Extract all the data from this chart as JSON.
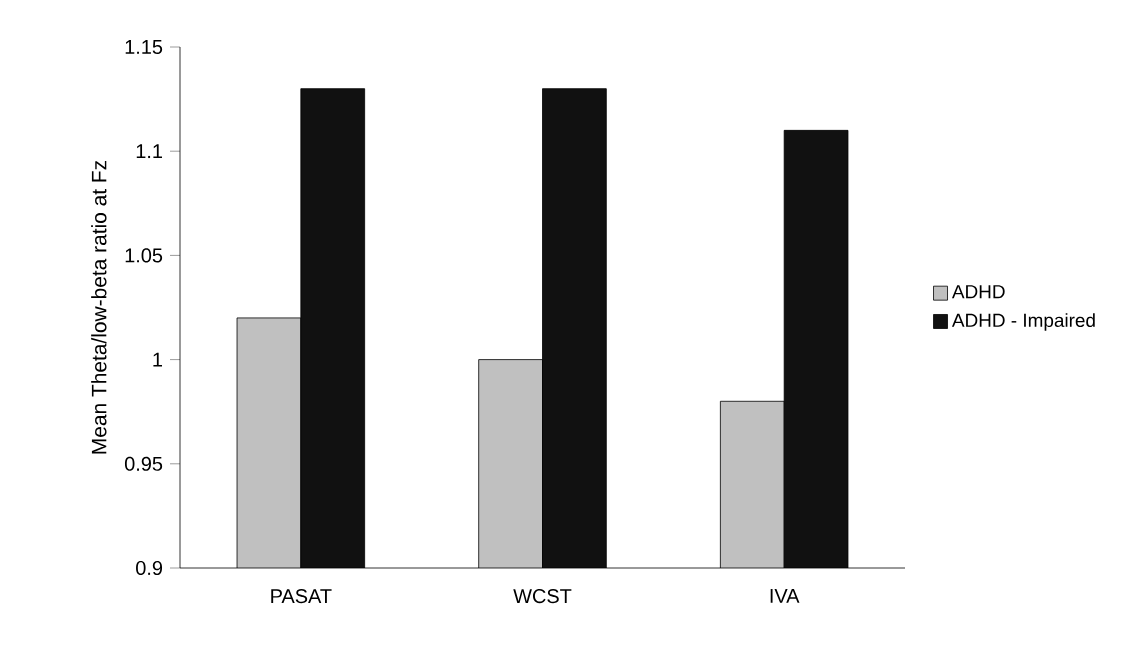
{
  "chart_data": {
    "type": "bar",
    "ylabel": "Mean Theta/low-beta ratio at Fz",
    "categories": [
      "PASAT",
      "WCST",
      "IVA"
    ],
    "series": [
      {
        "name": "ADHD",
        "color": "#c0c0c0",
        "values": [
          1.02,
          1.0,
          0.98
        ]
      },
      {
        "name": "ADHD - Impaired",
        "color": "#111111",
        "values": [
          1.13,
          1.13,
          1.11
        ]
      }
    ],
    "ylim": [
      0.9,
      1.15
    ],
    "yticks": [
      0.9,
      0.95,
      1,
      1.05,
      1.1,
      1.15
    ],
    "grid": false,
    "legend": "right"
  }
}
